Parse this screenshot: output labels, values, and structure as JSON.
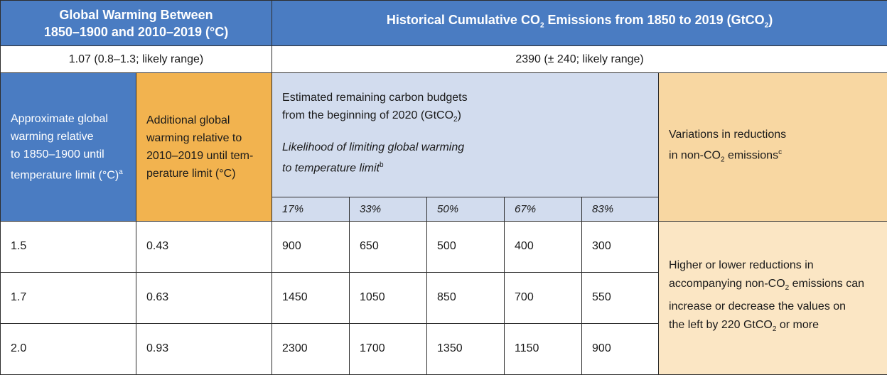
{
  "header": {
    "left_line1": "Global Warming Between",
    "left_line2": "1850–1900 and 2010–2019 (°C)",
    "right_main": "Historical Cumulative CO",
    "right_sub2": "2",
    "right_mid": " Emissions from 1850 to 2019 (GtCO",
    "right_sub2b": "2",
    "right_end": ")"
  },
  "subheader": {
    "left": "1.07 (0.8–1.3; likely range)",
    "right": "2390 (± 240; likely range)"
  },
  "columns": {
    "approx_l1": "Approximate global",
    "approx_l2": "warming relative",
    "approx_l3": "to 1850–1900 until",
    "approx_l4": "temperature limit (°C)",
    "approx_sup": "a",
    "additional_l1": "Additional global",
    "additional_l2": "warming relative to",
    "additional_l3": "2010–2019 until tem-",
    "additional_l4": "perature limit (°C)",
    "budget_l1": "Estimated remaining carbon budgets",
    "budget_l2a": "from the beginning of 2020 (GtCO",
    "budget_l2sub": "2",
    "budget_l2b": ")",
    "likely_l1": "Likelihood of limiting global warming",
    "likely_l2": "to temperature limit",
    "likely_sup": "b",
    "variations_l1": "Variations in reductions",
    "variations_l2a": "in non-CO",
    "variations_l2sub": "2",
    "variations_l2b": " emissions",
    "variations_sup": "c"
  },
  "likelihoods": [
    "17%",
    "33%",
    "50%",
    "67%",
    "83%"
  ],
  "rows": [
    {
      "approx": "1.5",
      "additional": "0.43",
      "budgets": [
        "900",
        "650",
        "500",
        "400",
        "300"
      ]
    },
    {
      "approx": "1.7",
      "additional": "0.63",
      "budgets": [
        "1450",
        "1050",
        "850",
        "700",
        "550"
      ]
    },
    {
      "approx": "2.0",
      "additional": "0.93",
      "budgets": [
        "2300",
        "1700",
        "1350",
        "1150",
        "900"
      ]
    }
  ],
  "note": {
    "l1": "Higher or lower reductions in",
    "l2a": "accompanying non-CO",
    "l2sub": "2",
    "l2b": " emissions can",
    "l3": "increase or decrease the values on",
    "l4a": "the left by 220 GtCO",
    "l4sub": "2",
    "l4b": " or more"
  }
}
